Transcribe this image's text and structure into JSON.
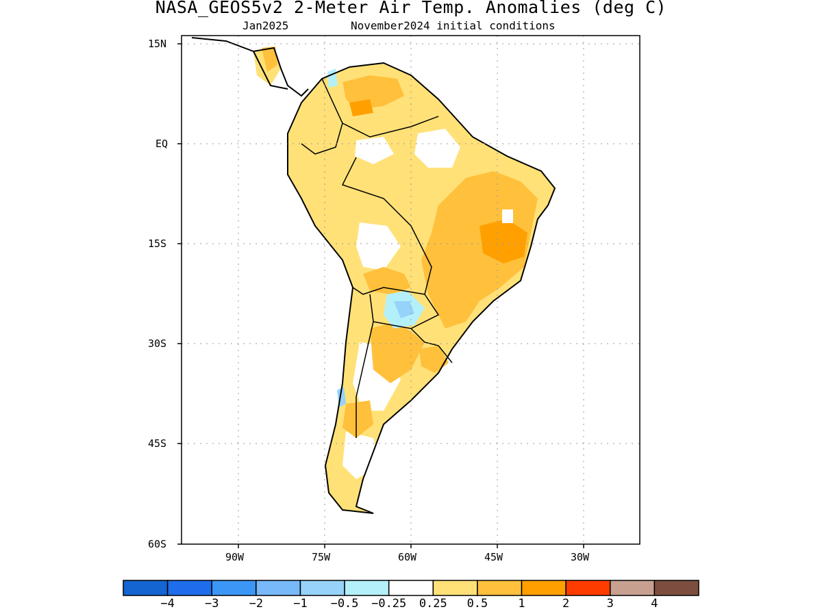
{
  "title": "NASA_GEOS5v2 2-Meter Air Temp. Anomalies (deg C)",
  "subtitle_left": "Jan2025",
  "subtitle_right": "November2024 initial conditions",
  "lat_ticks": [
    "15N",
    "EQ",
    "15S",
    "30S",
    "45S",
    "60S"
  ],
  "lon_ticks": [
    "90W",
    "75W",
    "60W",
    "45W",
    "30W"
  ],
  "colorbar": {
    "colors": [
      "#1464d2",
      "#1e6eeb",
      "#3c96f5",
      "#78b9fa",
      "#96d2fa",
      "#b4f0fa",
      "#ffffff",
      "#ffe178",
      "#ffc03c",
      "#ffa000",
      "#ff3c00",
      "#c8a090",
      "#7d4e40"
    ],
    "labels": [
      "−4",
      "−3",
      "−2",
      "−1",
      "−0.5",
      "−0.25",
      "0.25",
      "0.5",
      "1",
      "2",
      "3",
      "4"
    ]
  },
  "map": {
    "type": "map",
    "variable": "2-Meter Air Temp. Anomalies",
    "units": "deg C",
    "lon_range": [
      -100,
      -20
    ],
    "lat_range": [
      -60,
      15
    ],
    "grid": "dotted"
  }
}
